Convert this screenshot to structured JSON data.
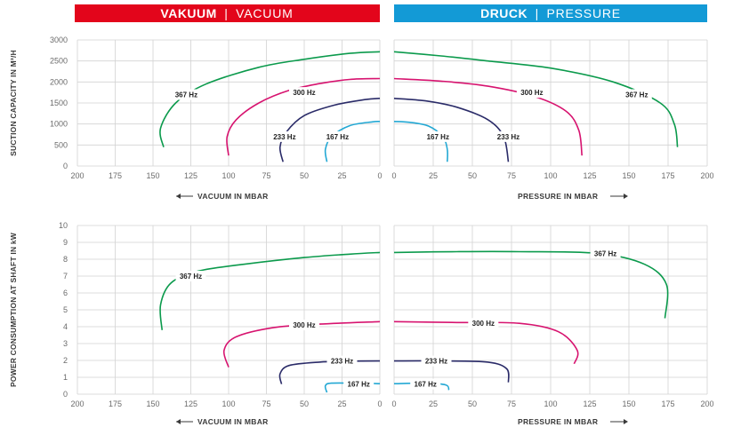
{
  "header": {
    "vacuum": {
      "bold": "VAKUUM",
      "sep": "|",
      "light": "VACUUM",
      "color": "#e3051b"
    },
    "pressure": {
      "bold": "DRUCK",
      "sep": "|",
      "light": "PRESSURE",
      "color": "#139ad6"
    }
  },
  "colors": {
    "367": "#0b9a4c",
    "300": "#d7136f",
    "233": "#2a2b68",
    "167": "#23a8d4"
  },
  "chart_data": [
    {
      "type": "line",
      "id": "suction",
      "ylabel": "SUCTION CAPACITY IN M³/H",
      "ylim": [
        0,
        3000
      ],
      "yticks": [
        "0",
        "500",
        "1000",
        "1500",
        "2000",
        "2500",
        "3000"
      ],
      "x_left_label": "VACUUM IN MBAR",
      "x_right_label": "PRESSURE IN MBAR",
      "x_left_ticks": [
        "200",
        "175",
        "150",
        "125",
        "100",
        "75",
        "50",
        "25",
        "0"
      ],
      "x_right_ticks": [
        "0",
        "25",
        "50",
        "75",
        "100",
        "125",
        "150",
        "175",
        "200"
      ],
      "series": [
        {
          "name": "367 Hz",
          "color_key": "367",
          "vacuum": [
            [
              143,
              450
            ],
            [
              145,
              900
            ],
            [
              135,
              1500
            ],
            [
              115,
              1950
            ],
            [
              80,
              2350
            ],
            [
              50,
              2540
            ],
            [
              20,
              2680
            ],
            [
              0,
              2720
            ]
          ],
          "pressure": [
            [
              0,
              2720
            ],
            [
              30,
              2620
            ],
            [
              60,
              2500
            ],
            [
              100,
              2330
            ],
            [
              140,
              2000
            ],
            [
              170,
              1500
            ],
            [
              179,
              1000
            ],
            [
              181,
              450
            ]
          ]
        },
        {
          "name": "300 Hz",
          "color_key": "300",
          "vacuum": [
            [
              100,
              250
            ],
            [
              101,
              700
            ],
            [
              95,
              1100
            ],
            [
              80,
              1500
            ],
            [
              60,
              1800
            ],
            [
              40,
              1960
            ],
            [
              20,
              2060
            ],
            [
              0,
              2080
            ]
          ],
          "pressure": [
            [
              0,
              2080
            ],
            [
              30,
              2020
            ],
            [
              60,
              1900
            ],
            [
              90,
              1650
            ],
            [
              110,
              1300
            ],
            [
              118,
              850
            ],
            [
              120,
              250
            ]
          ]
        },
        {
          "name": "233 Hz",
          "color_key": "233",
          "vacuum": [
            [
              64,
              100
            ],
            [
              66,
              450
            ],
            [
              62,
              800
            ],
            [
              50,
              1200
            ],
            [
              30,
              1450
            ],
            [
              10,
              1580
            ],
            [
              0,
              1610
            ]
          ],
          "pressure": [
            [
              0,
              1610
            ],
            [
              20,
              1550
            ],
            [
              40,
              1400
            ],
            [
              60,
              1100
            ],
            [
              70,
              700
            ],
            [
              73,
              100
            ]
          ]
        },
        {
          "name": "167 Hz",
          "color_key": "167",
          "vacuum": [
            [
              35,
              100
            ],
            [
              36,
              400
            ],
            [
              32,
              700
            ],
            [
              20,
              960
            ],
            [
              5,
              1050
            ],
            [
              0,
              1060
            ]
          ],
          "pressure": [
            [
              0,
              1060
            ],
            [
              10,
              1040
            ],
            [
              22,
              950
            ],
            [
              31,
              700
            ],
            [
              34,
              400
            ],
            [
              34,
              100
            ]
          ]
        }
      ],
      "labels": [
        {
          "text": "367 Hz",
          "side": "vacuum",
          "x": 128,
          "y": 1700
        },
        {
          "text": "300 Hz",
          "side": "vacuum",
          "x": 50,
          "y": 1750
        },
        {
          "text": "233 Hz",
          "side": "vacuum",
          "x": 63,
          "y": 700
        },
        {
          "text": "167 Hz",
          "side": "vacuum",
          "x": 28,
          "y": 700
        },
        {
          "text": "367 Hz",
          "side": "pressure",
          "x": 155,
          "y": 1700
        },
        {
          "text": "300 Hz",
          "side": "pressure",
          "x": 88,
          "y": 1750
        },
        {
          "text": "167 Hz",
          "side": "pressure",
          "x": 28,
          "y": 700
        },
        {
          "text": "233 Hz",
          "side": "pressure",
          "x": 73,
          "y": 700
        }
      ]
    },
    {
      "type": "line",
      "id": "power",
      "ylabel": "POWER CONSUMPTION AT SHAFT IN kW",
      "ylim": [
        0,
        10
      ],
      "yticks": [
        "0",
        "1",
        "2",
        "3",
        "4",
        "5",
        "6",
        "7",
        "8",
        "9",
        "10"
      ],
      "x_left_label": "VACUUM IN MBAR",
      "x_right_label": "PRESSURE IN MBAR",
      "x_left_ticks": [
        "200",
        "175",
        "150",
        "125",
        "100",
        "75",
        "50",
        "25",
        "0"
      ],
      "x_right_ticks": [
        "0",
        "25",
        "50",
        "75",
        "100",
        "125",
        "150",
        "175",
        "200"
      ],
      "series": [
        {
          "name": "367 Hz",
          "color_key": "367",
          "vacuum": [
            [
              144,
              3.8
            ],
            [
              145,
              5.3
            ],
            [
              138,
              6.6
            ],
            [
              120,
              7.3
            ],
            [
              90,
              7.7
            ],
            [
              50,
              8.1
            ],
            [
              20,
              8.3
            ],
            [
              0,
              8.4
            ]
          ],
          "pressure": [
            [
              0,
              8.4
            ],
            [
              40,
              8.45
            ],
            [
              80,
              8.45
            ],
            [
              130,
              8.35
            ],
            [
              160,
              7.7
            ],
            [
              174,
              6.5
            ],
            [
              173,
              4.5
            ]
          ]
        },
        {
          "name": "300 Hz",
          "color_key": "300",
          "vacuum": [
            [
              100,
              1.6
            ],
            [
              103,
              2.6
            ],
            [
              95,
              3.4
            ],
            [
              70,
              3.95
            ],
            [
              40,
              4.15
            ],
            [
              0,
              4.3
            ]
          ],
          "pressure": [
            [
              0,
              4.3
            ],
            [
              40,
              4.25
            ],
            [
              80,
              4.2
            ],
            [
              105,
              3.7
            ],
            [
              117,
              2.6
            ],
            [
              115,
              1.8
            ]
          ]
        },
        {
          "name": "233 Hz",
          "color_key": "233",
          "vacuum": [
            [
              65,
              0.6
            ],
            [
              66,
              1.2
            ],
            [
              60,
              1.7
            ],
            [
              40,
              1.9
            ],
            [
              20,
              1.95
            ],
            [
              0,
              1.97
            ]
          ],
          "pressure": [
            [
              0,
              1.97
            ],
            [
              30,
              1.97
            ],
            [
              60,
              1.9
            ],
            [
              72,
              1.5
            ],
            [
              73,
              0.7
            ]
          ]
        },
        {
          "name": "167 Hz",
          "color_key": "167",
          "vacuum": [
            [
              35,
              0.1
            ],
            [
              36,
              0.5
            ],
            [
              32,
              0.65
            ],
            [
              15,
              0.65
            ],
            [
              0,
              0.62
            ]
          ],
          "pressure": [
            [
              0,
              0.62
            ],
            [
              20,
              0.65
            ],
            [
              33,
              0.55
            ],
            [
              35,
              0.25
            ]
          ]
        }
      ],
      "labels": [
        {
          "text": "367 Hz",
          "side": "vacuum",
          "x": 125,
          "y": 7
        },
        {
          "text": "300 Hz",
          "side": "vacuum",
          "x": 50,
          "y": 4.1
        },
        {
          "text": "233 Hz",
          "side": "vacuum",
          "x": 25,
          "y": 1.97
        },
        {
          "text": "167 Hz",
          "side": "vacuum",
          "x": 14,
          "y": 0.6
        },
        {
          "text": "367 Hz",
          "side": "pressure",
          "x": 135,
          "y": 8.35
        },
        {
          "text": "300 Hz",
          "side": "pressure",
          "x": 57,
          "y": 4.2
        },
        {
          "text": "233 Hz",
          "side": "pressure",
          "x": 27,
          "y": 1.97
        },
        {
          "text": "167 Hz",
          "side": "pressure",
          "x": 20,
          "y": 0.6
        }
      ]
    }
  ]
}
